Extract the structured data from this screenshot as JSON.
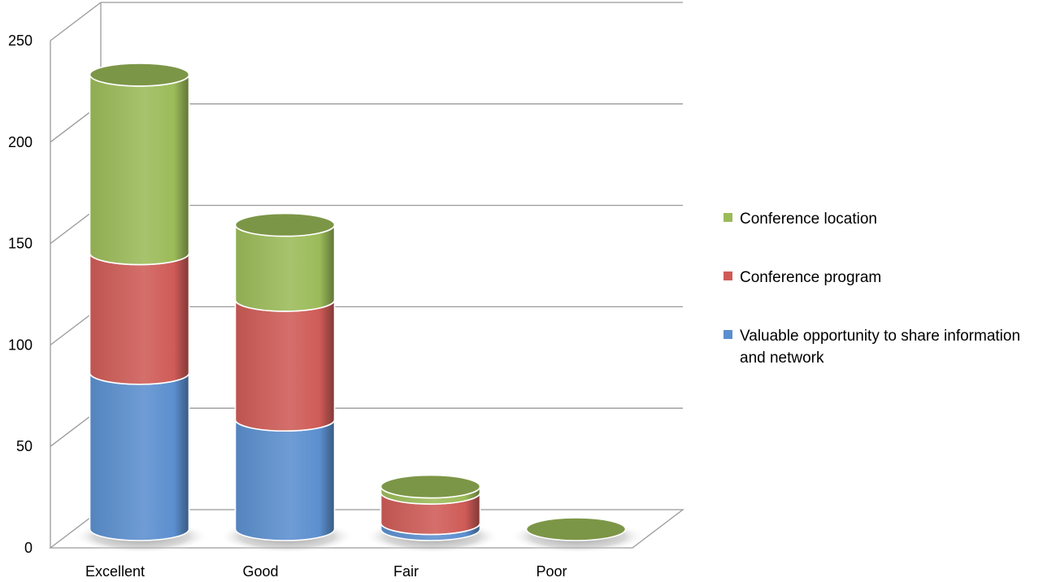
{
  "chart_data": {
    "type": "bar",
    "stacked": true,
    "style": "3d-cylinder",
    "title": "",
    "xlabel": "",
    "ylabel": "",
    "categories": [
      "Excellent",
      "Good",
      "Fair",
      "Poor"
    ],
    "ylim": [
      0,
      250
    ],
    "yticks": [
      0,
      50,
      100,
      150,
      200,
      250
    ],
    "grid": true,
    "legend_position": "right",
    "series": [
      {
        "name": "Valuable opportunity to share information and network",
        "name_lines": [
          "Valuable opportunity to share information",
          "and network"
        ],
        "color": "#5b8fcf",
        "values": [
          77,
          54,
          3,
          0
        ]
      },
      {
        "name": "Conference program",
        "color": "#cf5b57",
        "values": [
          59,
          59,
          15,
          0
        ]
      },
      {
        "name": "Conference location",
        "color": "#9bbb59",
        "values": [
          88,
          37,
          3,
          0
        ]
      }
    ]
  }
}
